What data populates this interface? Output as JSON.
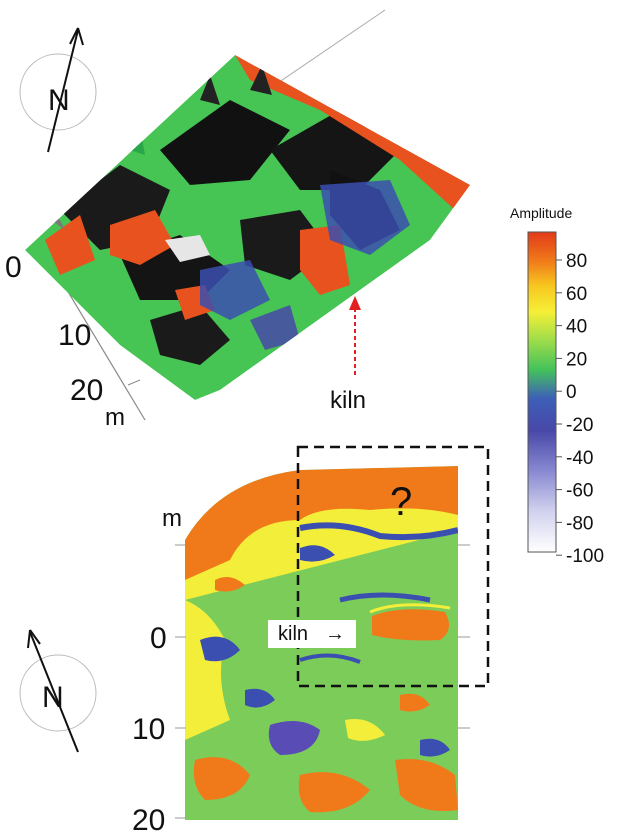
{
  "top_panel": {
    "north_label": "N",
    "axis_ticks": [
      "0",
      "10",
      "20"
    ],
    "axis_unit": "m",
    "kiln_label": "kiln"
  },
  "colorbar": {
    "title": "Amplitude",
    "ticks": [
      "80",
      "60",
      "40",
      "20",
      "0",
      "-20",
      "-40",
      "-60",
      "-80",
      "-100"
    ],
    "colors": [
      "#e23a1a",
      "#f07a1a",
      "#f7c81f",
      "#f5ef37",
      "#a6df49",
      "#44c25a",
      "#3d5fb8",
      "#4848a8",
      "#8a8ad2",
      "#d0d0ee",
      "#ffffff"
    ]
  },
  "bottom_panel": {
    "north_label": "N",
    "axis_unit": "m",
    "axis_ticks": [
      "0",
      "10",
      "20"
    ],
    "kiln_label": "kiln",
    "kiln_arrow": "→",
    "question_mark": "?"
  }
}
